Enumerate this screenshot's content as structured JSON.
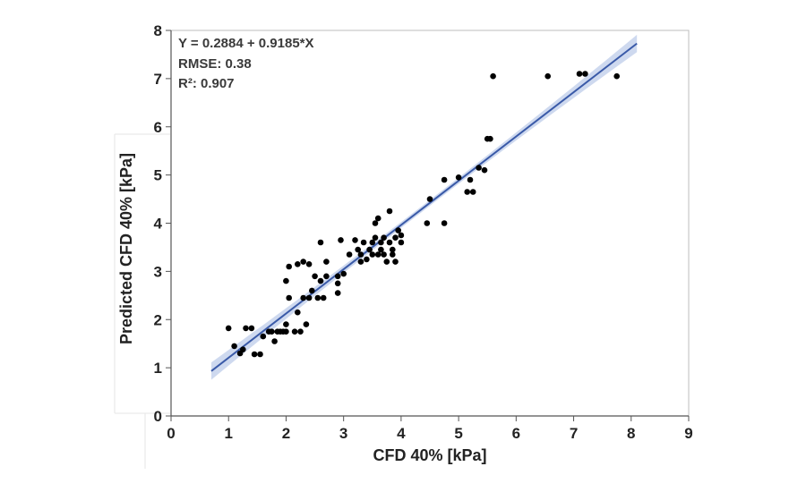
{
  "chart_data": {
    "type": "scatter",
    "title": "",
    "xlabel": "CFD 40% [kPa]",
    "ylabel": "Predicted CFD 40% [kPa]",
    "xlim": [
      0,
      9
    ],
    "ylim": [
      0,
      8
    ],
    "xticks": [
      "0",
      "1",
      "2",
      "3",
      "4",
      "5",
      "6",
      "7",
      "8",
      "9"
    ],
    "yticks": [
      "0",
      "1",
      "2",
      "3",
      "4",
      "5",
      "6",
      "7",
      "8"
    ],
    "grid": false,
    "annotations": {
      "equation": "Y = 0.2884 + 0.9185*X",
      "rmse": "RMSE: 0.38",
      "r2": "R²: 0.907"
    },
    "fit": {
      "intercept": 0.2884,
      "slope": 0.9185,
      "x_range": [
        0.7,
        8.1
      ],
      "ci_halfwidth_ends": 0.18,
      "ci_halfwidth_mid": 0.06
    },
    "colors": {
      "points": "#000000",
      "fit_line": "#3a5aa8",
      "ci_band": "#c5d2ec"
    },
    "points": [
      [
        1.0,
        1.82
      ],
      [
        1.1,
        1.45
      ],
      [
        1.2,
        1.3
      ],
      [
        1.25,
        1.38
      ],
      [
        1.3,
        1.82
      ],
      [
        1.4,
        1.82
      ],
      [
        1.45,
        1.28
      ],
      [
        1.55,
        1.28
      ],
      [
        1.6,
        1.65
      ],
      [
        1.7,
        1.75
      ],
      [
        1.75,
        1.75
      ],
      [
        1.8,
        1.55
      ],
      [
        1.85,
        1.75
      ],
      [
        1.9,
        1.75
      ],
      [
        1.95,
        1.75
      ],
      [
        2.0,
        1.9
      ],
      [
        2.0,
        1.75
      ],
      [
        2.0,
        2.8
      ],
      [
        2.05,
        3.1
      ],
      [
        2.05,
        2.45
      ],
      [
        2.15,
        1.75
      ],
      [
        2.2,
        2.15
      ],
      [
        2.2,
        3.15
      ],
      [
        2.25,
        1.75
      ],
      [
        2.3,
        2.45
      ],
      [
        2.3,
        3.2
      ],
      [
        2.35,
        1.9
      ],
      [
        2.4,
        2.45
      ],
      [
        2.4,
        3.15
      ],
      [
        2.45,
        2.6
      ],
      [
        2.5,
        2.9
      ],
      [
        2.55,
        2.45
      ],
      [
        2.6,
        2.8
      ],
      [
        2.6,
        3.6
      ],
      [
        2.65,
        2.45
      ],
      [
        2.7,
        2.9
      ],
      [
        2.7,
        3.2
      ],
      [
        2.9,
        2.55
      ],
      [
        2.9,
        2.75
      ],
      [
        2.9,
        2.9
      ],
      [
        2.95,
        3.65
      ],
      [
        3.0,
        2.95
      ],
      [
        3.1,
        3.35
      ],
      [
        3.2,
        3.65
      ],
      [
        3.25,
        3.45
      ],
      [
        3.3,
        3.35
      ],
      [
        3.3,
        3.2
      ],
      [
        3.35,
        3.6
      ],
      [
        3.4,
        3.25
      ],
      [
        3.45,
        3.45
      ],
      [
        3.5,
        3.6
      ],
      [
        3.5,
        3.35
      ],
      [
        3.55,
        3.7
      ],
      [
        3.55,
        4.0
      ],
      [
        3.6,
        3.35
      ],
      [
        3.6,
        4.1
      ],
      [
        3.65,
        3.45
      ],
      [
        3.65,
        3.6
      ],
      [
        3.7,
        3.7
      ],
      [
        3.7,
        3.35
      ],
      [
        3.75,
        3.2
      ],
      [
        3.8,
        3.6
      ],
      [
        3.8,
        4.25
      ],
      [
        3.85,
        3.35
      ],
      [
        3.85,
        3.45
      ],
      [
        3.9,
        3.7
      ],
      [
        3.9,
        3.2
      ],
      [
        3.95,
        3.85
      ],
      [
        4.0,
        3.6
      ],
      [
        4.0,
        3.75
      ],
      [
        4.45,
        4.0
      ],
      [
        4.5,
        4.5
      ],
      [
        4.75,
        4.9
      ],
      [
        4.75,
        4.0
      ],
      [
        5.0,
        4.95
      ],
      [
        5.15,
        4.65
      ],
      [
        5.2,
        4.9
      ],
      [
        5.25,
        4.65
      ],
      [
        5.35,
        5.15
      ],
      [
        5.45,
        5.1
      ],
      [
        5.5,
        5.75
      ],
      [
        5.55,
        5.75
      ],
      [
        5.6,
        7.05
      ],
      [
        6.55,
        7.05
      ],
      [
        7.1,
        7.1
      ],
      [
        7.2,
        7.1
      ],
      [
        7.75,
        7.05
      ]
    ]
  }
}
